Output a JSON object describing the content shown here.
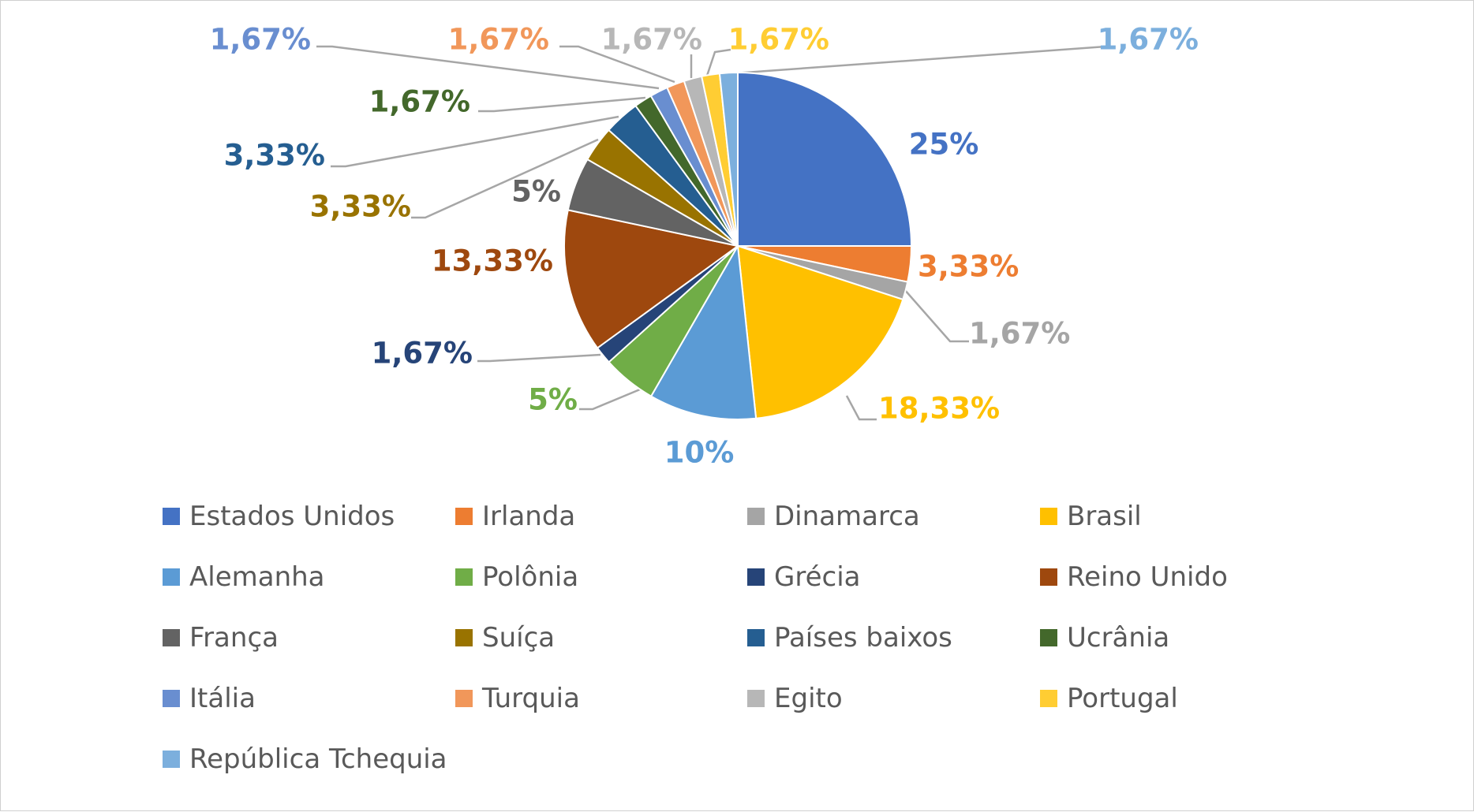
{
  "chart_data": {
    "type": "pie",
    "title": "",
    "legend_position": "bottom",
    "categories": [
      "Estados Unidos",
      "Irlanda",
      "Dinamarca",
      "Brasil",
      "Alemanha",
      "Polônia",
      "Grécia",
      "Reino Unido",
      "França",
      "Suíça",
      "Países baixos",
      "Ucrânia",
      "Itália",
      "Turquia",
      "Egito",
      "Portugal",
      "República Tchequia"
    ],
    "values": [
      25,
      3.33,
      1.67,
      18.33,
      10,
      5,
      1.67,
      13.33,
      5,
      3.33,
      3.33,
      1.67,
      1.67,
      1.67,
      1.67,
      1.67,
      1.67
    ],
    "labels": [
      "25%",
      "3,33%",
      "1,67%",
      "18,33%",
      "10%",
      "5%",
      "1,67%",
      "13,33%",
      "5%",
      "3,33%",
      "3,33%",
      "1,67%",
      "1,67%",
      "1,67%",
      "1,67%",
      "1,67%",
      "1,67%"
    ],
    "colors": [
      "#4472C4",
      "#ED7D31",
      "#A5A5A5",
      "#FFC000",
      "#5B9BD5",
      "#70AD47",
      "#264478",
      "#9E480E",
      "#636363",
      "#997300",
      "#255E91",
      "#43682B",
      "#698ED0",
      "#F1975A",
      "#B7B7B7",
      "#FFCD33",
      "#7CAFDD"
    ]
  }
}
